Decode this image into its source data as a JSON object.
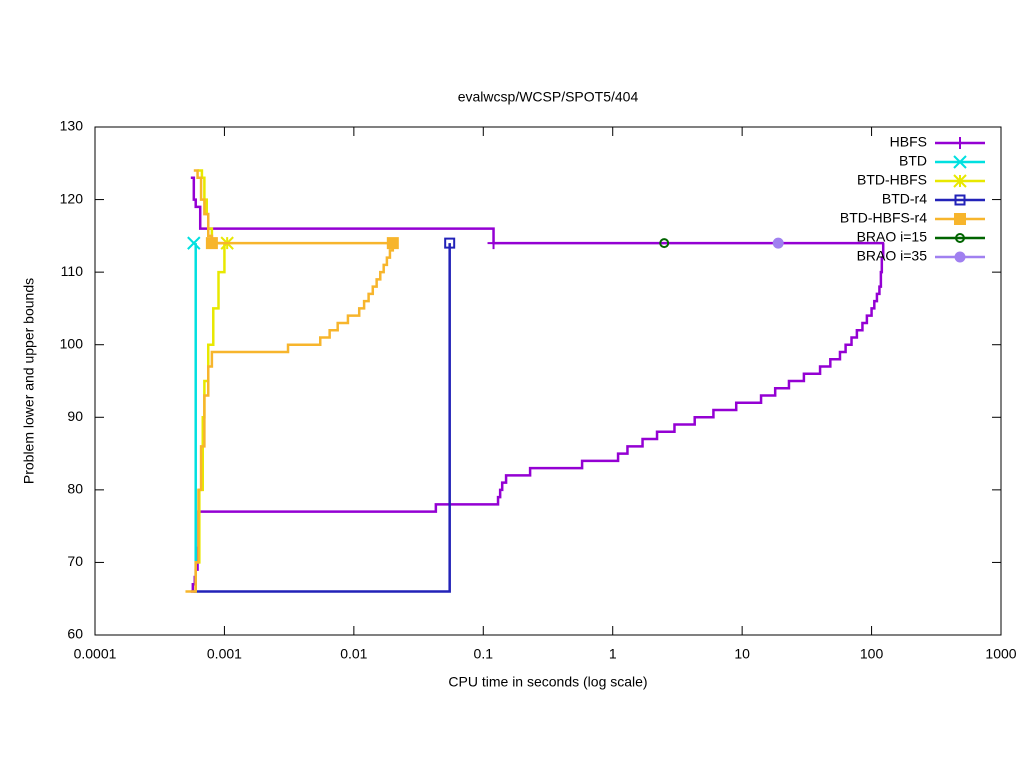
{
  "chart_data": {
    "type": "line",
    "line_style": "steps",
    "title": "evalwcsp/WCSP/SPOT5/404",
    "x_label": "CPU time in seconds (log scale)",
    "y_label": "Problem lower and upper bounds",
    "x_log": true,
    "xlim": [
      0.0001,
      1000
    ],
    "xticks": [
      0.0001,
      0.001,
      0.01,
      0.1,
      1,
      10,
      100,
      1000
    ],
    "ylim": [
      60,
      130
    ],
    "yticks": [
      60,
      70,
      80,
      90,
      100,
      110,
      120,
      130
    ],
    "legend": "top-right",
    "series": [
      {
        "name": "HBFS",
        "color": "#9400d3",
        "marker": "plus",
        "x": [
          0.00055,
          0.00058,
          0.0006,
          0.00065,
          0.12,
          125,
          null,
          0.00055,
          0.00057,
          0.00059,
          0.0006,
          0.00062,
          0.00063,
          0.043,
          0.13,
          0.135,
          0.14,
          0.15,
          0.18,
          0.23,
          0.58,
          1.1,
          1.3,
          1.7,
          2.2,
          3.0,
          4.3,
          6,
          9,
          14,
          18,
          23,
          30,
          40,
          48,
          57,
          63,
          70,
          77,
          85,
          92,
          100,
          105,
          110,
          115,
          118,
          120,
          123
        ],
        "values": [
          123,
          120,
          119,
          116,
          114,
          114,
          null,
          66,
          67,
          68,
          69,
          72,
          77,
          78,
          79,
          80,
          81,
          82,
          82,
          83,
          84,
          85,
          86,
          87,
          88,
          89,
          90,
          91,
          92,
          93,
          94,
          95,
          96,
          97,
          98,
          99,
          100,
          101,
          102,
          103,
          104,
          105,
          106,
          107,
          108,
          110,
          112,
          114
        ],
        "points": {
          "x": [
            0.12
          ],
          "values": [
            114
          ]
        }
      },
      {
        "name": "BTD",
        "color": "#00e0e0",
        "marker": "x",
        "x": [
          0.0006,
          0.0006
        ],
        "values": [
          66,
          114
        ],
        "points": {
          "x": [
            0.00058
          ],
          "values": [
            114
          ]
        }
      },
      {
        "name": "BTD-HBFS",
        "color": "#e8e800",
        "marker": "star",
        "x": [
          0.00062,
          0.00067,
          0.0007,
          0.00073,
          0.00075,
          0.0008,
          0.00105,
          null,
          0.00058,
          0.0006,
          0.00064,
          0.00068,
          0.0007,
          0.00075,
          0.00082,
          0.0009,
          0.001
        ],
        "values": [
          124,
          123,
          120,
          118,
          116,
          114,
          114,
          null,
          66,
          70,
          80,
          90,
          95,
          100,
          105,
          110,
          114
        ],
        "points": {
          "x": [
            0.00105
          ],
          "values": [
            114
          ]
        }
      },
      {
        "name": "BTD-r4",
        "color": "#2222b8",
        "marker": "square-open",
        "x": [
          0.00058,
          0.055,
          0.055
        ],
        "values": [
          66,
          66,
          114
        ],
        "points": {
          "x": [
            0.055
          ],
          "values": [
            114
          ]
        }
      },
      {
        "name": "BTD-HBFS-r4",
        "color": "#f7b52c",
        "marker": "square",
        "x": [
          0.00058,
          0.00062,
          0.00066,
          0.0007,
          0.00075,
          0.0008,
          0.02,
          null,
          0.0005,
          0.00058,
          0.0006,
          0.00063,
          0.00066,
          0.0007,
          0.00075,
          0.0008,
          0.0031,
          0.0055,
          0.0065,
          0.0075,
          0.009,
          0.011,
          0.012,
          0.013,
          0.014,
          0.015,
          0.016,
          0.017,
          0.018,
          0.019,
          0.02
        ],
        "values": [
          124,
          123,
          120,
          118,
          115,
          114,
          114,
          null,
          66,
          66,
          70,
          80,
          86,
          93,
          97,
          99,
          100,
          101,
          102,
          103,
          104,
          105,
          106,
          107,
          108,
          109,
          110,
          111,
          112,
          113,
          114
        ],
        "points": {
          "x": [
            0.0008,
            0.02
          ],
          "values": [
            114,
            114
          ]
        }
      },
      {
        "name": "BRAO i=15",
        "color": "#006400",
        "marker": "circle-open",
        "x": [],
        "values": [],
        "points": {
          "x": [
            2.5
          ],
          "values": [
            114
          ]
        }
      },
      {
        "name": "BRAO i=35",
        "color": "#a080f0",
        "marker": "circle",
        "x": [],
        "values": [],
        "points": {
          "x": [
            19
          ],
          "values": [
            114
          ]
        }
      }
    ]
  }
}
